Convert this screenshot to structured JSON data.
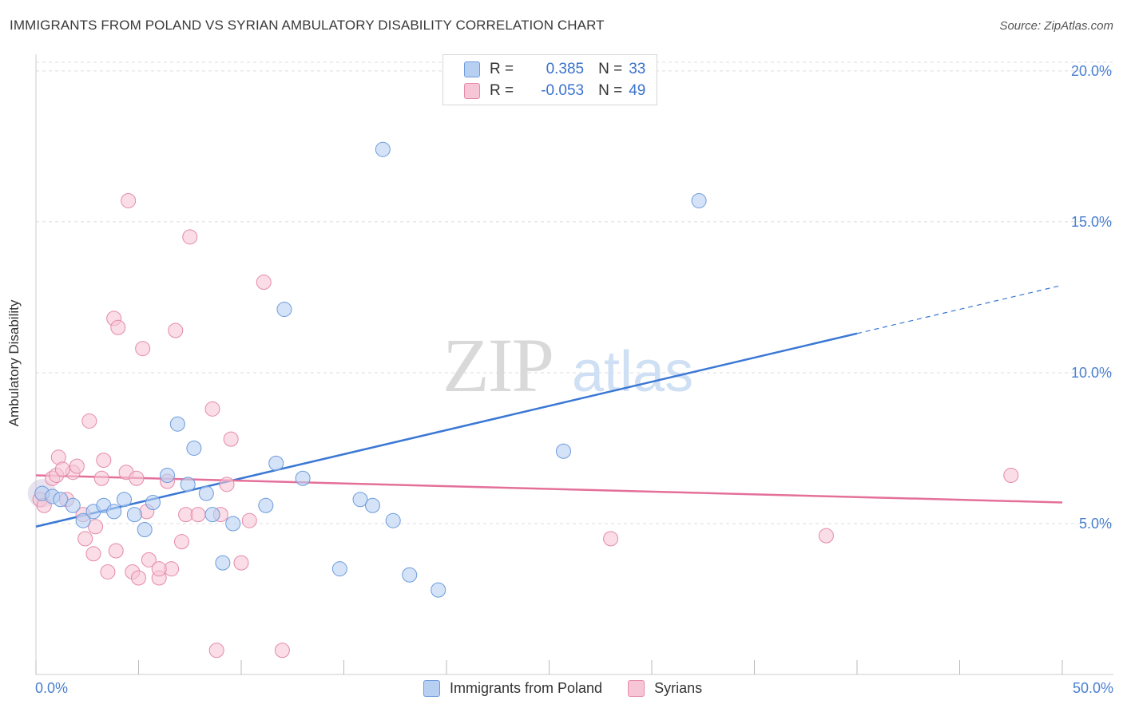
{
  "title": "IMMIGRANTS FROM POLAND VS SYRIAN AMBULATORY DISABILITY CORRELATION CHART",
  "source": "Source: ZipAtlas.com",
  "watermark": {
    "zip": "ZIP",
    "atlas": "atlas"
  },
  "legend": {
    "r_label": "R =",
    "n_label": "N =",
    "rows": [
      {
        "r": "0.385",
        "n": "33",
        "color": "#a9c8f0",
        "border": "#6d9bdc"
      },
      {
        "r": "-0.053",
        "n": "49",
        "color": "#f6bfd0",
        "border": "#e58aa8"
      }
    ]
  },
  "x_min_label": "0.0%",
  "x_max_label": "50.0%",
  "colors": {
    "blue": "#3a78d4",
    "pink": "#e4709a",
    "blue_fill": "#b7d0f2",
    "pink_fill": "#f7c6d6",
    "tick_text": "#4a7fd0"
  },
  "chart_data": {
    "type": "scatter",
    "ylabel": "Ambulatory Disability",
    "xlim": [
      0,
      50
    ],
    "ylim": [
      0,
      20.5
    ],
    "y_ticks": [
      5,
      10,
      15,
      20
    ],
    "y_tick_labels": [
      "5.0%",
      "10.0%",
      "15.0%",
      "20.0%"
    ],
    "grid": true,
    "series": [
      {
        "name": "Immigrants from Poland",
        "points": [
          [
            0.3,
            6.0
          ],
          [
            0.8,
            5.9
          ],
          [
            1.2,
            5.8
          ],
          [
            1.8,
            5.6
          ],
          [
            2.3,
            5.1
          ],
          [
            2.8,
            5.4
          ],
          [
            3.3,
            5.6
          ],
          [
            3.8,
            5.4
          ],
          [
            4.3,
            5.8
          ],
          [
            4.8,
            5.3
          ],
          [
            5.3,
            4.8
          ],
          [
            5.7,
            5.7
          ],
          [
            6.4,
            6.6
          ],
          [
            6.9,
            8.3
          ],
          [
            7.4,
            6.3
          ],
          [
            7.7,
            7.5
          ],
          [
            8.3,
            6.0
          ],
          [
            8.6,
            5.3
          ],
          [
            9.1,
            3.7
          ],
          [
            9.6,
            5.0
          ],
          [
            11.2,
            5.6
          ],
          [
            11.7,
            7.0
          ],
          [
            12.1,
            12.1
          ],
          [
            13.0,
            6.5
          ],
          [
            14.8,
            3.5
          ],
          [
            15.8,
            5.8
          ],
          [
            16.4,
            5.6
          ],
          [
            16.9,
            17.4
          ],
          [
            17.4,
            5.1
          ],
          [
            18.2,
            3.3
          ],
          [
            19.6,
            2.8
          ],
          [
            25.7,
            7.4
          ],
          [
            32.3,
            15.7
          ]
        ]
      },
      {
        "name": "Syrians",
        "points": [
          [
            0.2,
            5.8
          ],
          [
            0.4,
            5.6
          ],
          [
            0.8,
            6.5
          ],
          [
            1.0,
            6.6
          ],
          [
            1.1,
            7.2
          ],
          [
            1.5,
            5.8
          ],
          [
            1.8,
            6.7
          ],
          [
            2.0,
            6.9
          ],
          [
            2.3,
            5.3
          ],
          [
            2.4,
            4.5
          ],
          [
            2.6,
            8.4
          ],
          [
            2.8,
            4.0
          ],
          [
            2.9,
            4.9
          ],
          [
            3.2,
            6.5
          ],
          [
            3.3,
            7.1
          ],
          [
            3.5,
            3.4
          ],
          [
            3.8,
            11.8
          ],
          [
            3.9,
            4.1
          ],
          [
            4.0,
            11.5
          ],
          [
            4.4,
            6.7
          ],
          [
            4.5,
            15.7
          ],
          [
            4.7,
            3.4
          ],
          [
            4.9,
            6.5
          ],
          [
            5.0,
            3.2
          ],
          [
            5.2,
            10.8
          ],
          [
            5.4,
            5.4
          ],
          [
            5.5,
            3.8
          ],
          [
            6.0,
            3.2
          ],
          [
            6.4,
            6.4
          ],
          [
            6.6,
            3.5
          ],
          [
            6.8,
            11.4
          ],
          [
            7.1,
            4.4
          ],
          [
            7.3,
            5.3
          ],
          [
            7.5,
            14.5
          ],
          [
            7.9,
            5.3
          ],
          [
            8.6,
            8.8
          ],
          [
            9.0,
            5.3
          ],
          [
            9.3,
            6.3
          ],
          [
            9.5,
            7.8
          ],
          [
            10.0,
            3.7
          ],
          [
            10.4,
            5.1
          ],
          [
            11.1,
            13.0
          ],
          [
            12.0,
            0.8
          ],
          [
            28.0,
            4.5
          ],
          [
            38.5,
            4.6
          ],
          [
            47.5,
            6.6
          ],
          [
            1.3,
            6.8
          ],
          [
            6.0,
            3.5
          ],
          [
            8.8,
            0.8
          ]
        ]
      }
    ],
    "trendlines": [
      {
        "series": "Immigrants from Poland",
        "x": [
          0,
          40
        ],
        "y": [
          4.9,
          11.3
        ],
        "dashed_extension_to": [
          50,
          12.9
        ]
      },
      {
        "series": "Syrians",
        "x": [
          0,
          50
        ],
        "y": [
          6.6,
          5.7
        ]
      }
    ]
  }
}
